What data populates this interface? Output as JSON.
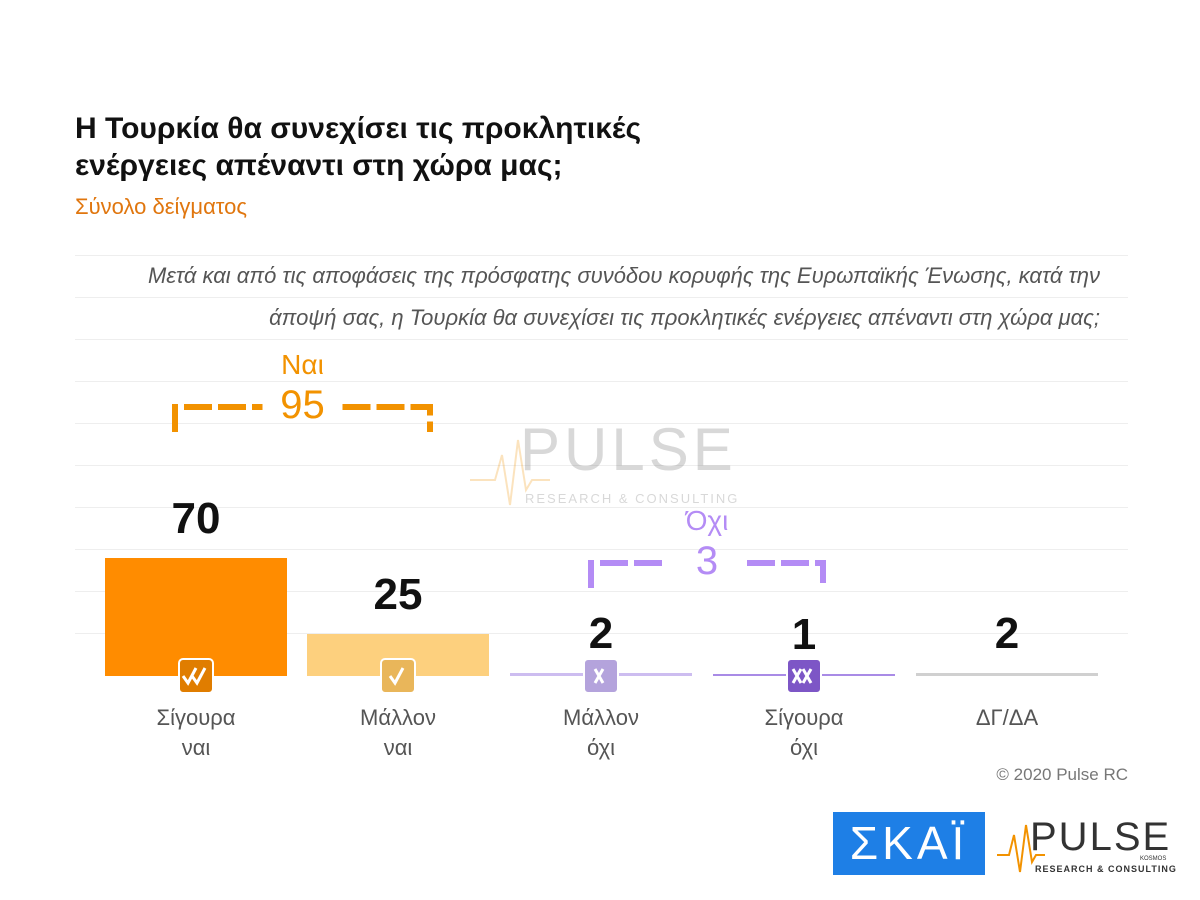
{
  "chart_data": {
    "type": "bar",
    "title": "Η Τουρκία θα συνεχίσει τις προκλητικές ενέργειες απέναντι στη χώρα μας;",
    "subtitle": "Σύνολο δείγματος",
    "question": "Μετά και από τις αποφάσεις της πρόσφατης συνόδου κορυφής της Ευρωπαϊκής Ένωσης, κατά την άποψή σας, η Τουρκία θα συνεχίσει τις προκλητικές ενέργειες απέναντι στη χώρα μας;",
    "categories": [
      "Σίγουρα ναι",
      "Μάλλον ναι",
      "Μάλλον όχι",
      "Σίγουρα όχι",
      "ΔΓ/ΔΑ"
    ],
    "values": [
      70,
      25,
      2,
      1,
      2
    ],
    "colors": [
      "#ff8c00",
      "#fdd07e",
      "#cdbdf0",
      "#a98be6",
      "#d0d0d0"
    ],
    "groups": [
      {
        "label": "Ναι",
        "value": 95,
        "color": "#f29200"
      },
      {
        "label": "Όχι",
        "value": 3,
        "color": "#b48cf5"
      }
    ],
    "source": "© 2020 Pulse RC"
  },
  "branding": {
    "broadcaster": "ΣΚΑΪ",
    "pollster": "PULSE",
    "pollster_tagline": "RESEARCH & CONSULTING",
    "pollster_mark": "KOSMOS"
  }
}
